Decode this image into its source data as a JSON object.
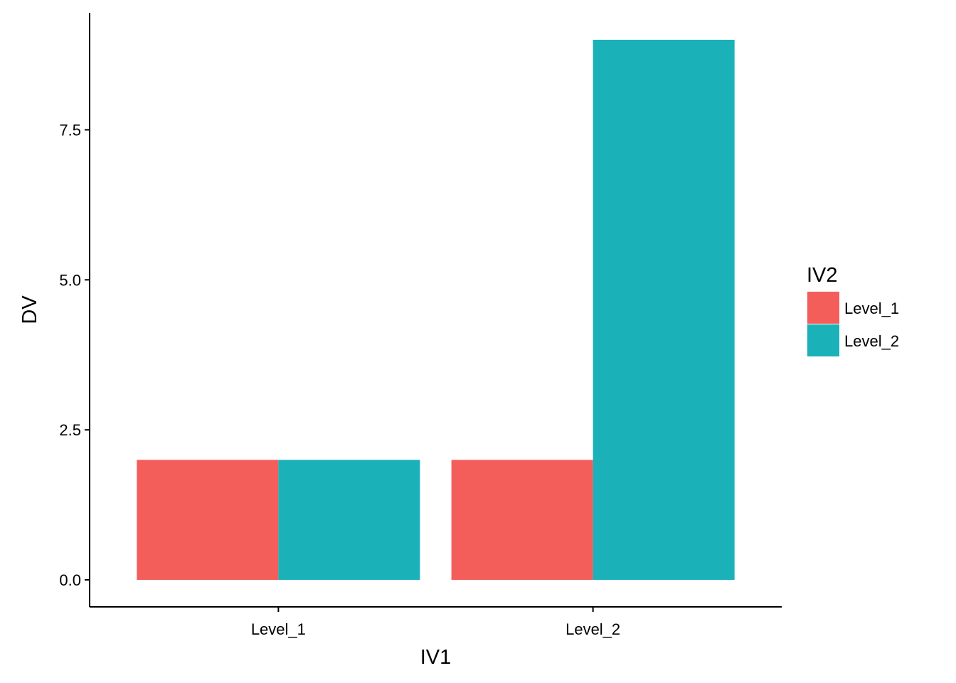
{
  "chart_data": {
    "type": "bar",
    "xlabel": "IV1",
    "ylabel": "DV",
    "categories": [
      "Level_1",
      "Level_2"
    ],
    "series": [
      {
        "name": "Level_1",
        "values": [
          2,
          2
        ],
        "color": "#F35E5A"
      },
      {
        "name": "Level_2",
        "values": [
          2,
          9
        ],
        "color": "#1AB2B8"
      }
    ],
    "ylim": [
      -0.45,
      9.45
    ],
    "yticks": [
      0.0,
      2.5,
      5.0,
      7.5
    ],
    "ytick_labels": [
      "0.0",
      "2.5",
      "5.0",
      "7.5"
    ],
    "grid": false,
    "legend": {
      "title": "IV2",
      "position": "right",
      "items": [
        "Level_1",
        "Level_2"
      ]
    }
  }
}
